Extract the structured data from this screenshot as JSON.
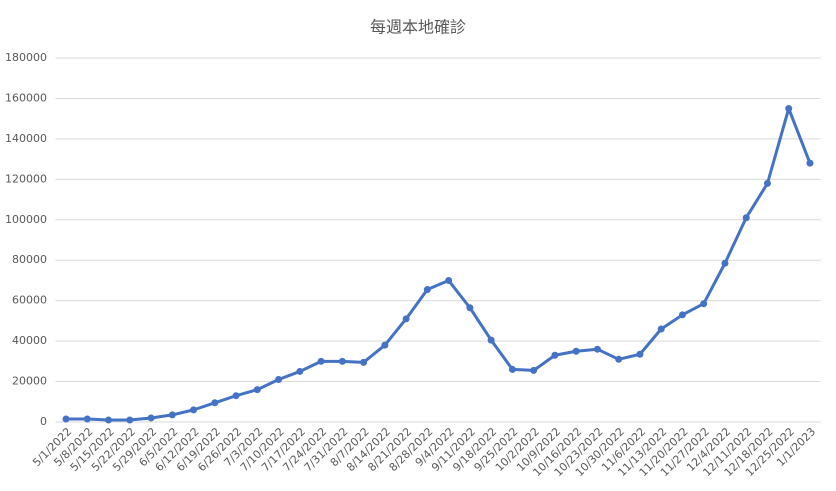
{
  "chart_data": {
    "type": "line",
    "title": "每週本地確診",
    "categories": [
      "5/1/2022",
      "5/8/2022",
      "5/15/2022",
      "5/22/2022",
      "5/29/2022",
      "6/5/2022",
      "6/12/2022",
      "6/19/2022",
      "6/26/2022",
      "7/3/2022",
      "7/10/2022",
      "7/17/2022",
      "7/24/2022",
      "7/31/2022",
      "8/7/2022",
      "8/14/2022",
      "8/21/2022",
      "8/28/2022",
      "9/4/2022",
      "9/11/2022",
      "9/18/2022",
      "9/25/2022",
      "10/2/2022",
      "10/9/2022",
      "10/16/2022",
      "10/23/2022",
      "10/30/2022",
      "11/6/2022",
      "11/13/2022",
      "11/20/2022",
      "11/27/2022",
      "12/4/2022",
      "12/11/2022",
      "12/18/2022",
      "12/25/2022",
      "1/1/2023"
    ],
    "values": [
      1500,
      1500,
      1000,
      1000,
      2000,
      3500,
      6000,
      9500,
      13000,
      16000,
      21000,
      25000,
      30000,
      30000,
      29500,
      38000,
      51000,
      65500,
      70000,
      56500,
      40500,
      26000,
      25500,
      33000,
      35000,
      36000,
      31000,
      33500,
      46000,
      53000,
      58500,
      78500,
      101000,
      118000,
      155000,
      128000
    ],
    "color": "#4472c4",
    "ylim": [
      0,
      180000
    ],
    "yticks": [
      0,
      20000,
      40000,
      60000,
      80000,
      100000,
      120000,
      140000,
      160000,
      180000
    ],
    "grid": true
  }
}
